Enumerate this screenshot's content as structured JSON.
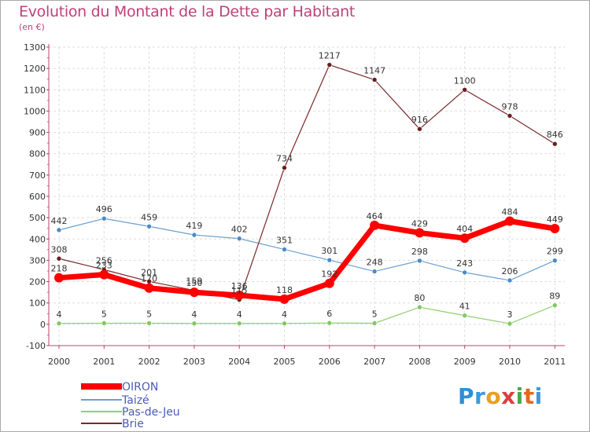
{
  "header": {
    "title": "Evolution du Montant de la Dette par Habitant",
    "subtitle": "(en €)"
  },
  "logo": {
    "text": "Proxiti",
    "letters": [
      "P",
      "r",
      "o",
      "x",
      "i",
      "t",
      "i"
    ]
  },
  "chart_data": {
    "type": "line",
    "title": "Evolution du Montant de la Dette par Habitant",
    "subtitle": "(en €)",
    "xlabel": "",
    "ylabel": "",
    "x": [
      "2000",
      "2001",
      "2002",
      "2003",
      "2004",
      "2005",
      "2006",
      "2007",
      "2008",
      "2009",
      "2010",
      "2011"
    ],
    "ylim": [
      -100,
      1300
    ],
    "yticks": [
      "-100",
      "0",
      "100",
      "200",
      "300",
      "400",
      "500",
      "600",
      "700",
      "800",
      "900",
      "1000",
      "1100",
      "1200",
      "1300"
    ],
    "grid": true,
    "legend": "bottom-left",
    "series": [
      {
        "name": "OIRON",
        "color": "#ff0000",
        "values": [
          218,
          233,
          170,
          150,
          136,
          118,
          192,
          464,
          429,
          404,
          484,
          449
        ]
      },
      {
        "name": "Taizé",
        "color": "#6a9fd0",
        "values": [
          442,
          496,
          459,
          419,
          402,
          351,
          301,
          248,
          298,
          243,
          206,
          299
        ]
      },
      {
        "name": "Pas-de-Jeu",
        "color": "#90d070",
        "values": [
          4,
          5,
          5,
          4,
          4,
          4,
          6,
          5,
          80,
          41,
          3,
          89
        ]
      },
      {
        "name": "Brie",
        "color": "#7a2828",
        "values": [
          308,
          256,
          201,
          159,
          115,
          734,
          1217,
          1147,
          916,
          1100,
          978,
          846
        ]
      }
    ],
    "value_labels": [
      [
        "218",
        "233",
        "170",
        "150",
        "136",
        "118",
        "192",
        "464",
        "429",
        "404",
        "484",
        "449"
      ],
      [
        "442",
        "496",
        "459",
        "419",
        "402",
        "351",
        "301",
        "248",
        "298",
        "243",
        "206",
        "299"
      ],
      [
        "4",
        "5",
        "5",
        "4",
        "4",
        "4",
        "6",
        "5",
        "80",
        "41",
        "3",
        "89"
      ],
      [
        "308",
        "256",
        "201",
        "159",
        "115",
        "734",
        "1217",
        "1147",
        "916",
        "1100",
        "978",
        "846"
      ]
    ]
  }
}
